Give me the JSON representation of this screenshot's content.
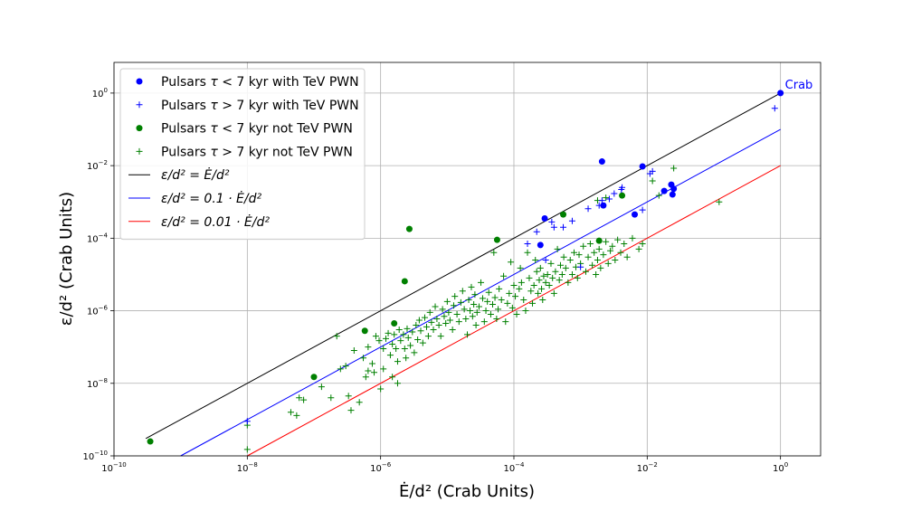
{
  "chart_data": {
    "type": "scatter",
    "x_scale": "log",
    "y_scale": "log",
    "xlabel": "Ė/d² (Crab Units)",
    "ylabel": "ε/d² (Crab Units)",
    "xlim": [
      1e-10,
      4
    ],
    "ylim": [
      1e-10,
      7
    ],
    "grid": true,
    "legend_position": "upper-left",
    "x_ticks": [
      {
        "value": 1e-10,
        "base": "10",
        "exp": "−10"
      },
      {
        "value": 1e-08,
        "base": "10",
        "exp": "−8"
      },
      {
        "value": 1e-06,
        "base": "10",
        "exp": "−6"
      },
      {
        "value": 0.0001,
        "base": "10",
        "exp": "−4"
      },
      {
        "value": 0.01,
        "base": "10",
        "exp": "−2"
      },
      {
        "value": 1,
        "base": "10",
        "exp": "0"
      }
    ],
    "y_ticks": [
      {
        "value": 1e-10,
        "base": "10",
        "exp": "−10"
      },
      {
        "value": 1e-08,
        "base": "10",
        "exp": "−8"
      },
      {
        "value": 1e-06,
        "base": "10",
        "exp": "−6"
      },
      {
        "value": 0.0001,
        "base": "10",
        "exp": "−4"
      },
      {
        "value": 0.01,
        "base": "10",
        "exp": "−2"
      },
      {
        "value": 1,
        "base": "10",
        "exp": "0"
      }
    ],
    "annotations": [
      {
        "text": "Crab",
        "x": 1,
        "y": 1,
        "color": "#0000ff"
      }
    ],
    "series": [
      {
        "name": "Pulsars τ < 7 kyr with TeV PWN",
        "marker": "circle",
        "color": "#0000ff",
        "points": [
          [
            1,
            1
          ],
          [
            0.0021,
            0.013
          ],
          [
            0.0085,
            0.0095
          ],
          [
            0.0022,
            0.0008
          ],
          [
            0.00029,
            0.00035
          ],
          [
            0.00025,
            6.5e-05
          ],
          [
            0.0065,
            0.00045
          ],
          [
            0.018,
            0.002
          ],
          [
            0.023,
            0.003
          ],
          [
            0.024,
            0.0016
          ],
          [
            0.025,
            0.0023
          ]
        ]
      },
      {
        "name": "Pulsars τ > 7 kyr with TeV PWN",
        "marker": "plus",
        "color": "#0000ff",
        "points": [
          [
            0.82,
            0.38
          ],
          [
            0.011,
            0.006
          ],
          [
            0.012,
            0.007
          ],
          [
            0.0042,
            0.0025
          ],
          [
            0.0041,
            0.0022
          ],
          [
            0.0085,
            0.0006
          ],
          [
            0.0032,
            0.0017
          ],
          [
            0.0021,
            0.0011
          ],
          [
            0.0019,
            0.0008
          ],
          [
            0.0013,
            0.00065
          ],
          [
            0.00037,
            0.00028
          ],
          [
            0.00055,
            0.0002
          ],
          [
            0.00016,
            7e-05
          ],
          [
            0.00075,
            0.0003
          ],
          [
            0.0027,
            0.0012
          ],
          [
            0.001,
            1.6e-05
          ],
          [
            0.00022,
            0.00015
          ],
          [
            0.0004,
            0.0002
          ],
          [
            1e-08,
            9e-10
          ],
          [
            0.0003,
            2.5e-05
          ]
        ]
      },
      {
        "name": "Pulsars τ < 7 kyr not TeV PWN",
        "marker": "circle",
        "color": "#008000",
        "points": [
          [
            3.5e-10,
            2.5e-10
          ],
          [
            1e-07,
            1.5e-08
          ],
          [
            5.8e-07,
            2.8e-07
          ],
          [
            1.6e-06,
            4.5e-07
          ],
          [
            2.3e-06,
            6.5e-06
          ],
          [
            2.7e-06,
            0.00018
          ],
          [
            5.6e-05,
            9e-05
          ],
          [
            0.00055,
            0.00045
          ],
          [
            0.0019,
            8.5e-05
          ],
          [
            0.0042,
            0.0015
          ]
        ]
      },
      {
        "name": "Pulsars τ > 7 kyr not TeV PWN",
        "marker": "plus",
        "color": "#008000",
        "points": [
          [
            1e-08,
            1.5e-10
          ],
          [
            1e-08,
            7e-10
          ],
          [
            4.5e-08,
            1.6e-09
          ],
          [
            5.5e-08,
            1.3e-09
          ],
          [
            6e-08,
            4e-09
          ],
          [
            7e-08,
            3.5e-09
          ],
          [
            1.3e-07,
            8e-09
          ],
          [
            1.8e-07,
            4e-09
          ],
          [
            2.5e-07,
            2.5e-08
          ],
          [
            3e-07,
            3e-08
          ],
          [
            3.3e-07,
            4.5e-09
          ],
          [
            3.6e-07,
            1.8e-09
          ],
          [
            4.8e-07,
            3e-09
          ],
          [
            6.5e-07,
            2.2e-08
          ],
          [
            6e-07,
            1.5e-08
          ],
          [
            8e-07,
            2e-08
          ],
          [
            1e-06,
            7e-09
          ],
          [
            1.1e-06,
            2.5e-08
          ],
          [
            1.5e-06,
            1.5e-08
          ],
          [
            1.8e-06,
            1e-08
          ],
          [
            2.2e-07,
            2e-07
          ],
          [
            4e-07,
            8e-08
          ],
          [
            5.5e-07,
            5e-08
          ],
          [
            6.5e-07,
            1e-07
          ],
          [
            7.5e-07,
            3.5e-08
          ],
          [
            8.5e-07,
            2e-07
          ],
          [
            9.5e-07,
            1.5e-07
          ],
          [
            1.1e-06,
            9e-08
          ],
          [
            1.2e-06,
            1.7e-07
          ],
          [
            1.3e-06,
            2.4e-07
          ],
          [
            1.4e-06,
            6e-08
          ],
          [
            1.5e-06,
            1.2e-07
          ],
          [
            1.6e-06,
            2.2e-07
          ],
          [
            1.7e-06,
            9e-08
          ],
          [
            1.8e-06,
            4e-08
          ],
          [
            1.9e-06,
            3e-07
          ],
          [
            2e-06,
            1.5e-07
          ],
          [
            2.2e-06,
            2.2e-07
          ],
          [
            2.3e-06,
            9e-08
          ],
          [
            2.4e-06,
            5e-08
          ],
          [
            2.5e-06,
            3.2e-07
          ],
          [
            2.6e-06,
            1.8e-07
          ],
          [
            2.8e-06,
            1.1e-07
          ],
          [
            3e-06,
            2.6e-07
          ],
          [
            3.2e-06,
            7e-08
          ],
          [
            3.4e-06,
            4e-07
          ],
          [
            3.6e-06,
            1.6e-07
          ],
          [
            3.8e-06,
            5.5e-07
          ],
          [
            4e-06,
            2.8e-07
          ],
          [
            4.3e-06,
            1.3e-07
          ],
          [
            4.6e-06,
            6.5e-07
          ],
          [
            4.9e-06,
            3.6e-07
          ],
          [
            5.2e-06,
            2e-07
          ],
          [
            5.5e-06,
            9e-07
          ],
          [
            5.8e-06,
            4.8e-07
          ],
          [
            6.2e-06,
            3e-07
          ],
          [
            6.6e-06,
            1.3e-06
          ],
          [
            7e-06,
            6e-07
          ],
          [
            7.5e-06,
            4e-07
          ],
          [
            8e-06,
            2e-07
          ],
          [
            8.5e-06,
            1.1e-06
          ],
          [
            9e-06,
            7e-07
          ],
          [
            9.5e-06,
            4.5e-07
          ],
          [
            1e-05,
            1.8e-06
          ],
          [
            1.05e-05,
            9e-07
          ],
          [
            1.1e-05,
            5.5e-07
          ],
          [
            1.2e-05,
            3e-07
          ],
          [
            1.25e-05,
            1.4e-06
          ],
          [
            1.3e-05,
            2.5e-06
          ],
          [
            1.4e-05,
            8e-07
          ],
          [
            1.5e-05,
            5e-07
          ],
          [
            1.6e-05,
            1.7e-06
          ],
          [
            1.7e-05,
            3.5e-06
          ],
          [
            1.8e-05,
            1.1e-06
          ],
          [
            1.9e-05,
            6e-07
          ],
          [
            2e-05,
            2.2e-07
          ],
          [
            2.1e-05,
            2e-06
          ],
          [
            2.2e-05,
            1e-06
          ],
          [
            2.3e-05,
            4.5e-06
          ],
          [
            2.4e-05,
            7e-07
          ],
          [
            2.5e-05,
            1.5e-06
          ],
          [
            2.6e-05,
            2.8e-06
          ],
          [
            2.7e-05,
            4e-07
          ],
          [
            2.8e-05,
            9e-07
          ],
          [
            3e-05,
            1.3e-06
          ],
          [
            3.2e-05,
            6e-06
          ],
          [
            3.4e-05,
            2.2e-06
          ],
          [
            3.6e-05,
            5e-07
          ],
          [
            3.8e-05,
            1e-06
          ],
          [
            4e-05,
            1.8e-06
          ],
          [
            4.2e-05,
            3.2e-06
          ],
          [
            4.5e-05,
            8e-07
          ],
          [
            4.8e-05,
            1.5e-06
          ],
          [
            5e-05,
            4e-05
          ],
          [
            5.2e-05,
            2.3e-06
          ],
          [
            5.5e-05,
            6e-07
          ],
          [
            5.8e-05,
            1.1e-06
          ],
          [
            6e-05,
            4e-06
          ],
          [
            6.5e-05,
            2e-06
          ],
          [
            7e-05,
            9e-06
          ],
          [
            7.5e-05,
            5e-07
          ],
          [
            8e-05,
            1.6e-06
          ],
          [
            8.5e-05,
            3e-06
          ],
          [
            9e-05,
            2.2e-05
          ],
          [
            9.5e-05,
            1.2e-06
          ],
          [
            0.0001,
            5e-06
          ],
          [
            0.000105,
            2.5e-06
          ],
          [
            0.00011,
            8e-07
          ],
          [
            0.00012,
            4e-06
          ],
          [
            0.000125,
            1.5e-05
          ],
          [
            0.00013,
            6e-06
          ],
          [
            0.00014,
            2e-06
          ],
          [
            0.00015,
            1e-06
          ],
          [
            0.00016,
            4e-05
          ],
          [
            0.00017,
            8e-06
          ],
          [
            0.00018,
            3.5e-06
          ],
          [
            0.00019,
            1.6e-06
          ],
          [
            0.0002,
            5e-06
          ],
          [
            0.00021,
            2.5e-05
          ],
          [
            0.00022,
            1.2e-05
          ],
          [
            0.00023,
            3e-06
          ],
          [
            0.00024,
            7e-06
          ],
          [
            0.00025,
            1.5e-05
          ],
          [
            0.00026,
            4e-06
          ],
          [
            0.00027,
            2e-06
          ],
          [
            0.00028,
            9e-06
          ],
          [
            0.0003,
            6e-06
          ],
          [
            0.00032,
            1e-05
          ],
          [
            0.00034,
            5e-06
          ],
          [
            0.00036,
            2e-05
          ],
          [
            0.00038,
            8e-06
          ],
          [
            0.0004,
            3e-06
          ],
          [
            0.00042,
            1.2e-05
          ],
          [
            0.00045,
            5e-05
          ],
          [
            0.00048,
            7e-06
          ],
          [
            0.0005,
            1.8e-05
          ],
          [
            0.00053,
            1e-05
          ],
          [
            0.00056,
            3e-05
          ],
          [
            0.0006,
            1.5e-05
          ],
          [
            0.00065,
            6e-06
          ],
          [
            0.0007,
            2.5e-05
          ],
          [
            0.00075,
            1e-05
          ],
          [
            0.0008,
            4e-05
          ],
          [
            0.00085,
            1.6e-05
          ],
          [
            0.0009,
            8e-06
          ],
          [
            0.00095,
            3.5e-05
          ],
          [
            0.001,
            2e-05
          ],
          [
            0.0011,
            6e-05
          ],
          [
            0.0012,
            1.2e-05
          ],
          [
            0.0013,
            3e-05
          ],
          [
            0.0014,
            7e-05
          ],
          [
            0.0015,
            1.8e-05
          ],
          [
            0.0016,
            4e-05
          ],
          [
            0.0017,
            1e-05
          ],
          [
            0.0018,
            2.5e-05
          ],
          [
            0.0019,
            5e-05
          ],
          [
            0.002,
            1.5e-05
          ],
          [
            0.0022,
            3.5e-05
          ],
          [
            0.0024,
            8e-05
          ],
          [
            0.0026,
            2e-05
          ],
          [
            0.0028,
            4.5e-05
          ],
          [
            0.003,
            6e-05
          ],
          [
            0.0033,
            2.5e-05
          ],
          [
            0.0036,
            9e-05
          ],
          [
            0.004,
            4e-05
          ],
          [
            0.0045,
            7e-05
          ],
          [
            0.005,
            3e-05
          ],
          [
            0.006,
            0.0001
          ],
          [
            0.0075,
            5e-05
          ],
          [
            0.0085,
            7e-05
          ],
          [
            0.012,
            0.0038
          ],
          [
            0.015,
            0.0015
          ],
          [
            0.025,
            0.0085
          ],
          [
            0.12,
            0.001
          ],
          [
            0.0024,
            0.0013
          ],
          [
            0.0018,
            0.0011
          ]
        ]
      }
    ],
    "reference_lines": [
      {
        "name": "ε/d² = Ė/d²",
        "factor": 1,
        "x_range": [
          3e-10,
          1
        ],
        "color": "#000000"
      },
      {
        "name": "ε/d² = 0.1 · Ė/d²",
        "factor": 0.1,
        "x_range": [
          1e-09,
          1
        ],
        "color": "#0000ff"
      },
      {
        "name": "ε/d² = 0.01 · Ė/d²",
        "factor": 0.01,
        "x_range": [
          1e-08,
          1
        ],
        "color": "#ff0000"
      }
    ],
    "legend": [
      {
        "marker": "circle",
        "color": "#0000ff",
        "pre": "Pulsars ",
        "sym": "τ",
        "post": " < 7 kyr with TeV PWN"
      },
      {
        "marker": "plus",
        "color": "#0000ff",
        "pre": "Pulsars ",
        "sym": "τ",
        "post": " > 7 kyr with TeV PWN"
      },
      {
        "marker": "circle",
        "color": "#008000",
        "pre": "Pulsars ",
        "sym": "τ",
        "post": " < 7 kyr not TeV PWN"
      },
      {
        "marker": "plus",
        "color": "#008000",
        "pre": "Pulsars ",
        "sym": "τ",
        "post": " > 7 kyr not TeV PWN"
      },
      {
        "marker": "line",
        "color": "#000000",
        "pre": "",
        "sym": "ε/d² = Ė/d²",
        "post": ""
      },
      {
        "marker": "line",
        "color": "#0000ff",
        "pre": "",
        "sym": "ε/d² = 0.1 · Ė/d²",
        "post": ""
      },
      {
        "marker": "line",
        "color": "#ff0000",
        "pre": "",
        "sym": "ε/d² = 0.01 · Ė/d²",
        "post": ""
      }
    ]
  }
}
